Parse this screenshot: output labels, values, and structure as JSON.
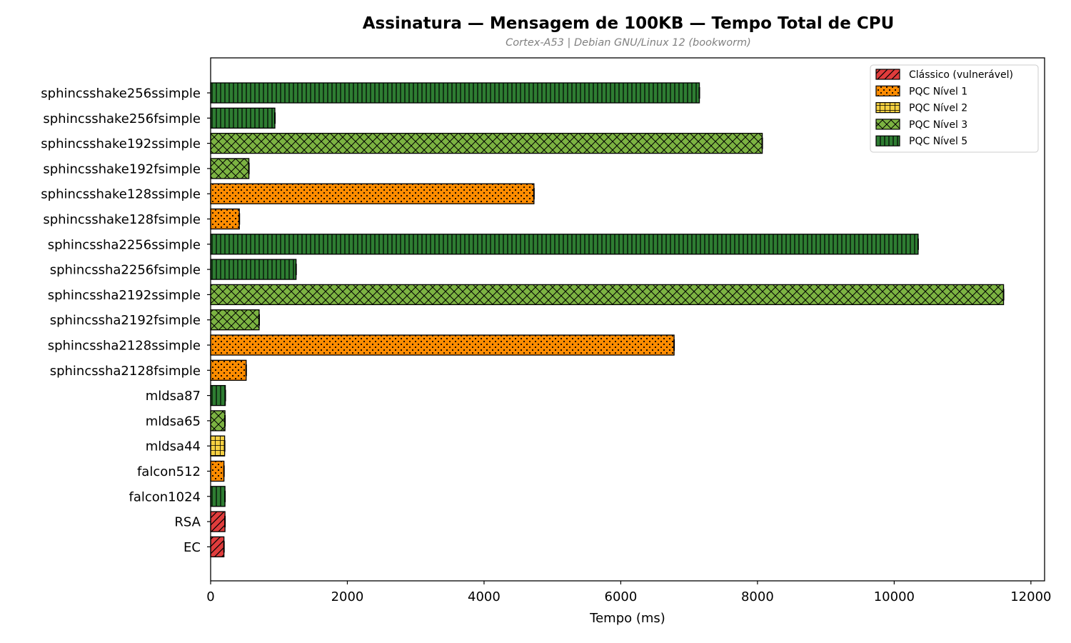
{
  "chart_data": {
    "type": "bar",
    "orientation": "horizontal",
    "title": "Assinatura — Mensagem de 100KB — Tempo Total de CPU",
    "subtitle": "Cortex-A53 | Debian GNU/Linux 12 (bookworm)",
    "xlabel": "Tempo (ms)",
    "ylabel": "",
    "xlim": [
      0,
      12200
    ],
    "xticks": [
      0,
      2000,
      4000,
      6000,
      8000,
      10000,
      12000
    ],
    "grid": false,
    "legend_position": "top-right",
    "groups": [
      {
        "name": "Clássico (vulnerável)",
        "color": "#e03c3c",
        "hatch": "diagonal"
      },
      {
        "name": "PQC Nível 1",
        "color": "#ff8c00",
        "hatch": "dots"
      },
      {
        "name": "PQC Nível 2",
        "color": "#f5d142",
        "hatch": "grid"
      },
      {
        "name": "PQC Nível 3",
        "color": "#7cb342",
        "hatch": "crosshatch"
      },
      {
        "name": "PQC Nível 5",
        "color": "#2e7d32",
        "hatch": "vertical"
      }
    ],
    "bars": [
      {
        "label": "sphincsshake256ssimple",
        "value": 7150,
        "group": 4
      },
      {
        "label": "sphincsshake256fsimple",
        "value": 940,
        "group": 4
      },
      {
        "label": "sphincsshake192ssimple",
        "value": 8070,
        "group": 3
      },
      {
        "label": "sphincsshake192fsimple",
        "value": 560,
        "group": 3
      },
      {
        "label": "sphincsshake128ssimple",
        "value": 4730,
        "group": 1
      },
      {
        "label": "sphincsshake128fsimple",
        "value": 420,
        "group": 1
      },
      {
        "label": "sphincssha2256ssimple",
        "value": 10350,
        "group": 4
      },
      {
        "label": "sphincssha2256fsimple",
        "value": 1250,
        "group": 4
      },
      {
        "label": "sphincssha2192ssimple",
        "value": 11600,
        "group": 3
      },
      {
        "label": "sphincssha2192fsimple",
        "value": 710,
        "group": 3
      },
      {
        "label": "sphincssha2128ssimple",
        "value": 6780,
        "group": 1
      },
      {
        "label": "sphincssha2128fsimple",
        "value": 520,
        "group": 1
      },
      {
        "label": "mldsa87",
        "value": 215,
        "group": 4
      },
      {
        "label": "mldsa65",
        "value": 210,
        "group": 3
      },
      {
        "label": "mldsa44",
        "value": 205,
        "group": 2
      },
      {
        "label": "falcon512",
        "value": 195,
        "group": 1
      },
      {
        "label": "falcon1024",
        "value": 210,
        "group": 4
      },
      {
        "label": "RSA",
        "value": 210,
        "group": 0
      },
      {
        "label": "EC",
        "value": 195,
        "group": 0
      }
    ]
  }
}
